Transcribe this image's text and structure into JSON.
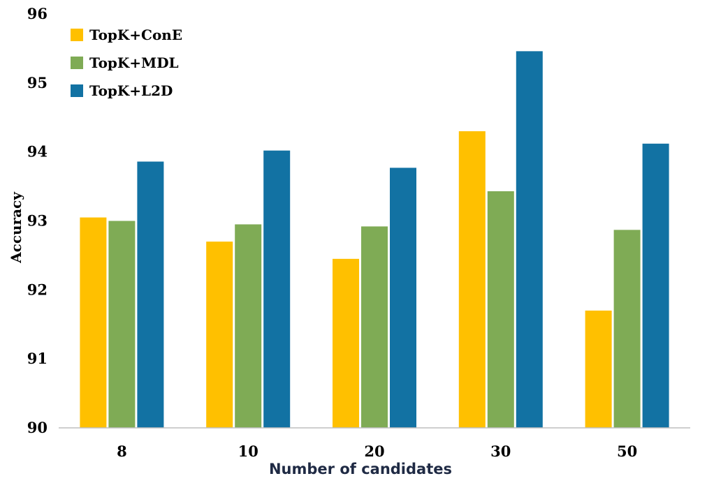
{
  "chart_data": {
    "type": "bar",
    "title": "",
    "xlabel": "Number of candidates",
    "ylabel": "Accuracy",
    "categories": [
      "8",
      "10",
      "20",
      "30",
      "50"
    ],
    "ylim": [
      90,
      96
    ],
    "yticks": [
      "90",
      "91",
      "92",
      "93",
      "94",
      "95",
      "96"
    ],
    "grid": false,
    "legend_position": "top-left",
    "series": [
      {
        "name": "TopK+ConE",
        "color": "#FFC000",
        "values": [
          93.05,
          92.7,
          92.45,
          94.3,
          91.7
        ]
      },
      {
        "name": "TopK+MDL",
        "color": "#7FAB55",
        "values": [
          93.0,
          92.95,
          92.92,
          93.43,
          92.87
        ]
      },
      {
        "name": "TopK+L2D",
        "color": "#1272A3",
        "values": [
          93.86,
          94.02,
          93.77,
          95.46,
          94.12
        ]
      }
    ]
  }
}
